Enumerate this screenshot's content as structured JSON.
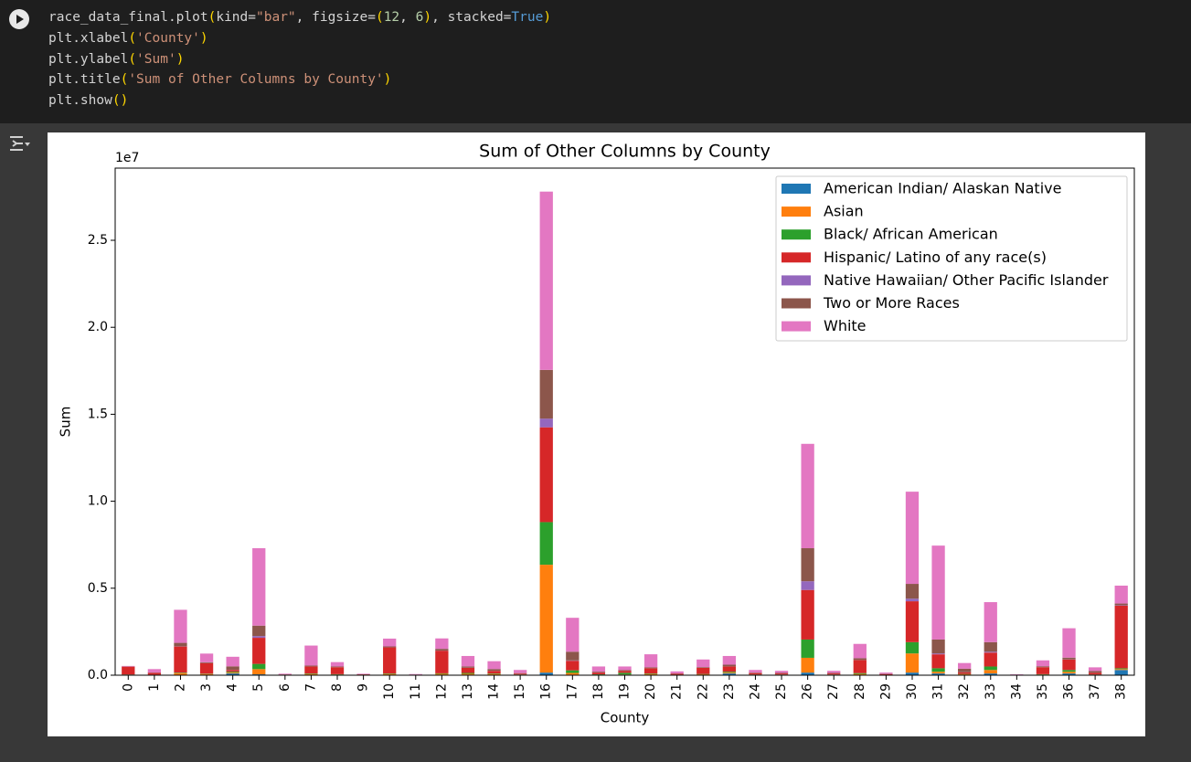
{
  "code": {
    "lines": [
      "race_data_final.plot(kind=\"bar\", figsize=(12, 6), stacked=True)",
      "plt.xlabel('County')",
      "plt.ylabel('Sum')",
      "plt.title('Sum of Other Columns by County')",
      "plt.show()"
    ]
  },
  "chart_data": {
    "type": "stacked_bar",
    "title": "Sum of Other Columns by County",
    "x_label": "County",
    "y_label": "Sum",
    "offset_text": "1e7",
    "categories": [
      "0",
      "1",
      "2",
      "3",
      "4",
      "5",
      "6",
      "7",
      "8",
      "9",
      "10",
      "11",
      "12",
      "13",
      "14",
      "15",
      "16",
      "17",
      "18",
      "19",
      "20",
      "21",
      "22",
      "23",
      "24",
      "25",
      "26",
      "27",
      "28",
      "29",
      "30",
      "31",
      "32",
      "33",
      "34",
      "35",
      "36",
      "37",
      "38"
    ],
    "ylim": [
      0,
      2.915
    ],
    "yticks": [
      {
        "value": 0,
        "label": "0.0"
      },
      0.5,
      {
        "value": 1,
        "label": "1.0"
      },
      1.5,
      {
        "value": 2,
        "label": "2.0"
      },
      2.5
    ],
    "legend": "upper right",
    "series": [
      {
        "name": "American Indian/ Alaskan Native",
        "color": "#1f77b4",
        "values": [
          0.001,
          0.001,
          0.002,
          0.002,
          0.01,
          0.005,
          0.0005,
          0.002,
          0.001,
          0.0005,
          0.002,
          0.0003,
          0.003,
          0.003,
          0.002,
          0.001,
          0.015,
          0.003,
          0.001,
          0.001,
          0.002,
          0.001,
          0.002,
          0.01,
          0.001,
          0.001,
          0.015,
          0.001,
          0.002,
          0.0005,
          0.015,
          0.01,
          0.002,
          0.01,
          0.0003,
          0.001,
          0.01,
          0.001,
          0.03
        ]
      },
      {
        "name": "Asian",
        "color": "#ff7f0e",
        "values": [
          0.002,
          0.001,
          0.01,
          0.005,
          0.005,
          0.03,
          0.0005,
          0.005,
          0.003,
          0.0005,
          0.005,
          0.0005,
          0.005,
          0.005,
          0.005,
          0.002,
          0.62,
          0.01,
          0.002,
          0.003,
          0.005,
          0.001,
          0.003,
          0.005,
          0.002,
          0.002,
          0.085,
          0.002,
          0.005,
          0.001,
          0.11,
          0.01,
          0.003,
          0.02,
          0.0005,
          0.003,
          0.01,
          0.002,
          0.005
        ]
      },
      {
        "name": "Black/ African American",
        "color": "#2ca02c",
        "values": [
          0.001,
          0.001,
          0.003,
          0.002,
          0.005,
          0.03,
          0.0005,
          0.003,
          0.002,
          0.0005,
          0.003,
          0.0003,
          0.003,
          0.005,
          0.003,
          0.001,
          0.245,
          0.015,
          0.002,
          0.01,
          0.003,
          0.001,
          0.002,
          0.005,
          0.001,
          0.001,
          0.105,
          0.001,
          0.005,
          0.0005,
          0.065,
          0.02,
          0.002,
          0.02,
          0.0003,
          0.002,
          0.01,
          0.001,
          0.005
        ]
      },
      {
        "name": "Hispanic/ Latino of any race(s)",
        "color": "#d62728",
        "values": [
          0.045,
          0.01,
          0.15,
          0.06,
          0.01,
          0.15,
          0.002,
          0.04,
          0.04,
          0.003,
          0.15,
          0.002,
          0.13,
          0.03,
          0.015,
          0.005,
          0.545,
          0.055,
          0.01,
          0.01,
          0.03,
          0.005,
          0.035,
          0.03,
          0.008,
          0.006,
          0.285,
          0.006,
          0.075,
          0.004,
          0.235,
          0.08,
          0.01,
          0.08,
          0.001,
          0.04,
          0.06,
          0.01,
          0.36
        ]
      },
      {
        "name": "Native Hawaiian/ Other Pacific Islander",
        "color": "#9467bd",
        "values": [
          0.0002,
          0.0001,
          0.001,
          0.0003,
          0.001,
          0.01,
          0.0001,
          0.0004,
          0.0003,
          0.0001,
          0.0004,
          0.0001,
          0.0005,
          0.0005,
          0.0005,
          0.0002,
          0.05,
          0.002,
          0.0002,
          0.0002,
          0.0003,
          0.0001,
          0.0003,
          0.0005,
          0.0002,
          0.0002,
          0.05,
          0.0002,
          0.0005,
          0.0001,
          0.015,
          0.005,
          0.0005,
          0.005,
          0.0001,
          0.0003,
          0.001,
          0.0002,
          0.002
        ]
      },
      {
        "name": "Two or More Races",
        "color": "#8c564b",
        "values": [
          0.001,
          0.002,
          0.02,
          0.005,
          0.02,
          0.06,
          0.001,
          0.005,
          0.004,
          0.001,
          0.005,
          0.0005,
          0.01,
          0.007,
          0.01,
          0.003,
          0.28,
          0.05,
          0.005,
          0.005,
          0.005,
          0.002,
          0.004,
          0.01,
          0.003,
          0.003,
          0.19,
          0.003,
          0.01,
          0.002,
          0.085,
          0.08,
          0.02,
          0.055,
          0.0005,
          0.005,
          0.01,
          0.01,
          0.01
        ]
      },
      {
        "name": "White",
        "color": "#e377c2",
        "values": [
          0.003,
          0.02,
          0.19,
          0.05,
          0.055,
          0.445,
          0.004,
          0.115,
          0.025,
          0.003,
          0.045,
          0.003,
          0.06,
          0.06,
          0.045,
          0.018,
          1.025,
          0.195,
          0.03,
          0.021,
          0.075,
          0.012,
          0.044,
          0.05,
          0.015,
          0.012,
          0.6,
          0.012,
          0.0825,
          0.007,
          0.53,
          0.54,
          0.0325,
          0.23,
          0.002,
          0.034,
          0.169,
          0.021,
          0.103
        ]
      }
    ]
  }
}
